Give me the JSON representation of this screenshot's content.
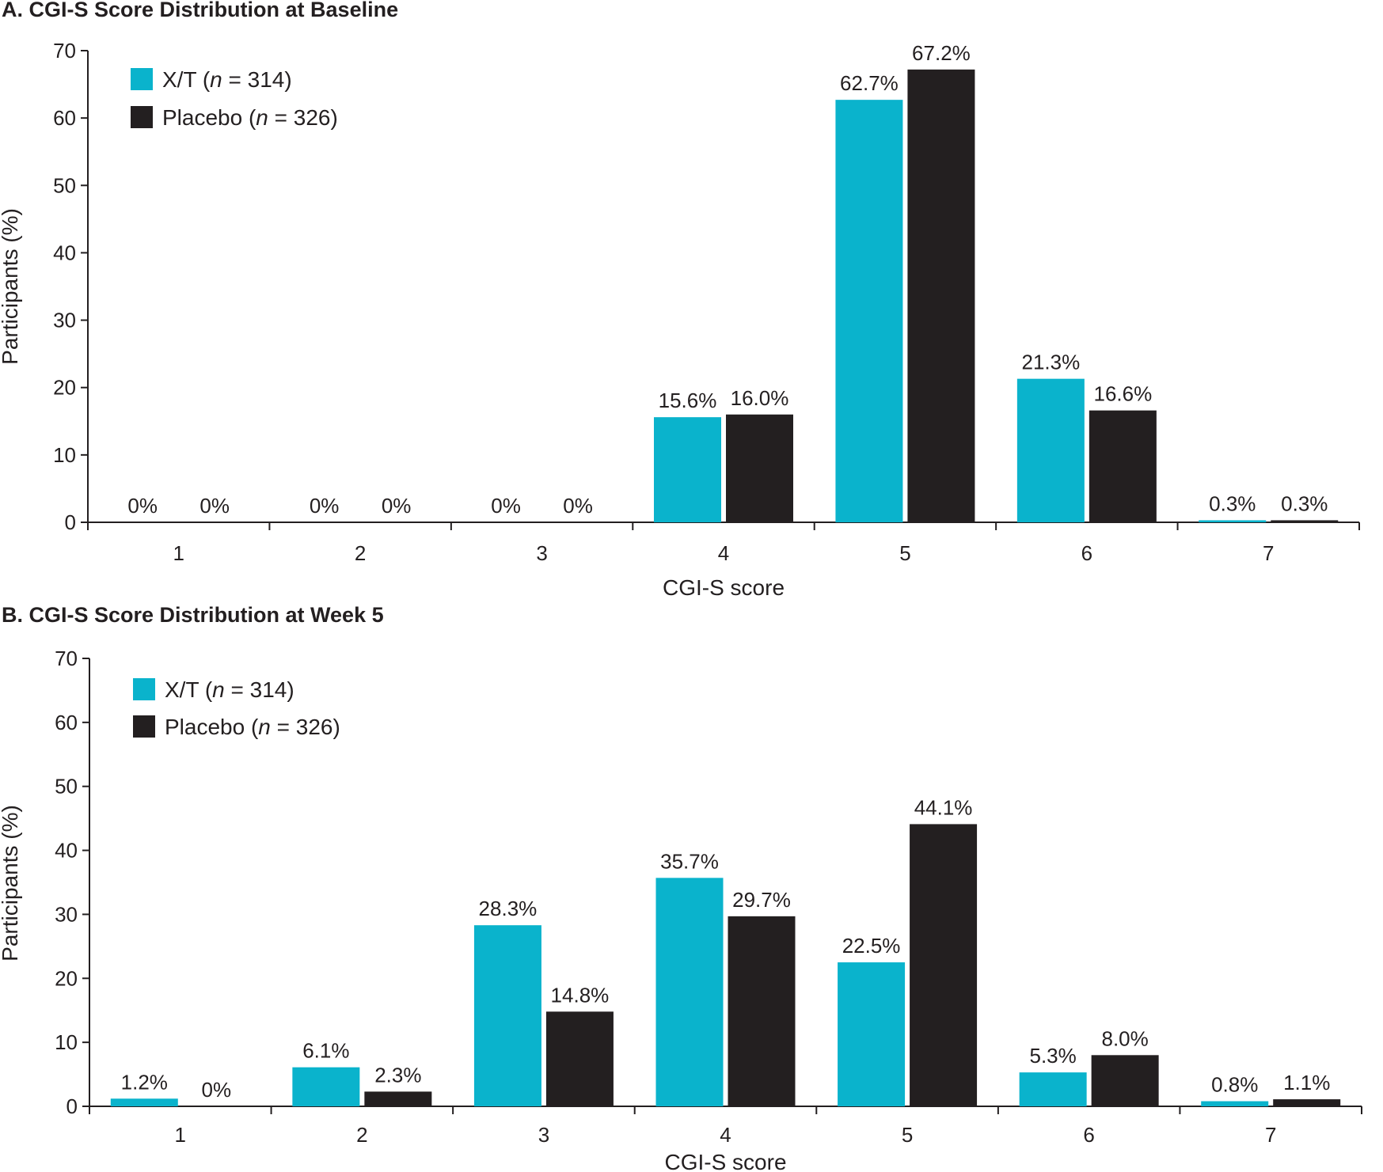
{
  "chart_data": [
    {
      "type": "bar",
      "title": "A. CGI-S Score Distribution at Baseline",
      "xlabel": "CGI-S score",
      "ylabel": "Participants (%)",
      "ylim": [
        0,
        70
      ],
      "yticks": [
        0,
        10,
        20,
        30,
        40,
        50,
        60,
        70
      ],
      "categories": [
        "1",
        "2",
        "3",
        "4",
        "5",
        "6",
        "7"
      ],
      "legend_position": "top-left",
      "series": [
        {
          "name": "X/T",
          "n_label": "n",
          "n_value": " = 314)",
          "color": "#0ab3cc",
          "values": [
            0,
            0,
            0,
            15.6,
            62.7,
            21.3,
            0.3
          ],
          "labels": [
            "0%",
            "0%",
            "0%",
            "15.6%",
            "62.7%",
            "21.3%",
            "0.3%"
          ]
        },
        {
          "name": "Placebo",
          "n_label": "n",
          "n_value": " = 326)",
          "color": "#231f20",
          "values": [
            0,
            0,
            0,
            16.0,
            67.2,
            16.6,
            0.3
          ],
          "labels": [
            "0%",
            "0%",
            "0%",
            "16.0%",
            "67.2%",
            "16.6%",
            "0.3%"
          ]
        }
      ]
    },
    {
      "type": "bar",
      "title": "B. CGI-S Score Distribution at Week 5",
      "xlabel": "CGI-S score",
      "ylabel": "Participants (%)",
      "ylim": [
        0,
        70
      ],
      "yticks": [
        0,
        10,
        20,
        30,
        40,
        50,
        60,
        70
      ],
      "categories": [
        "1",
        "2",
        "3",
        "4",
        "5",
        "6",
        "7"
      ],
      "legend_position": "top-left",
      "series": [
        {
          "name": "X/T",
          "n_label": "n",
          "n_value": " = 314)",
          "color": "#0ab3cc",
          "values": [
            1.2,
            6.1,
            28.3,
            35.7,
            22.5,
            5.3,
            0.8
          ],
          "labels": [
            "1.2%",
            "6.1%",
            "28.3%",
            "35.7%",
            "22.5%",
            "5.3%",
            "0.8%"
          ]
        },
        {
          "name": "Placebo",
          "n_label": "n",
          "n_value": " = 326)",
          "color": "#231f20",
          "values": [
            0,
            2.3,
            14.8,
            29.7,
            44.1,
            8.0,
            1.1
          ],
          "labels": [
            "0%",
            "2.3%",
            "14.8%",
            "29.7%",
            "44.1%",
            "8.0%",
            "1.1%"
          ]
        }
      ]
    }
  ]
}
